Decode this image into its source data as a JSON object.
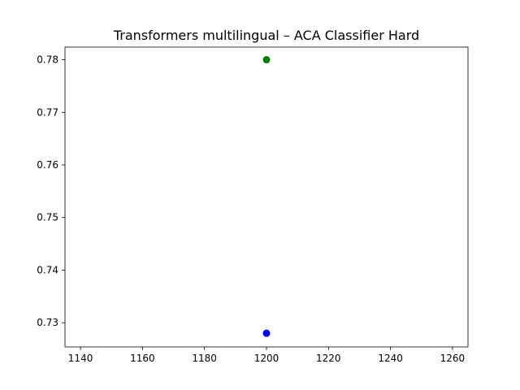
{
  "chart_data": {
    "type": "scatter",
    "title": "Transformers multilingual – ACA Classifier Hard",
    "xlabel": "",
    "ylabel": "",
    "xlim": [
      1135,
      1265
    ],
    "ylim": [
      0.7254,
      0.7824
    ],
    "grid": false,
    "x_ticks": [
      1140,
      1160,
      1180,
      1200,
      1220,
      1240,
      1260
    ],
    "y_ticks": [
      0.73,
      0.74,
      0.75,
      0.76,
      0.77,
      0.78
    ],
    "x_tick_labels": [
      "1140",
      "1160",
      "1180",
      "1200",
      "1220",
      "1240",
      "1260"
    ],
    "y_tick_labels": [
      "0.73",
      "0.74",
      "0.75",
      "0.76",
      "0.77",
      "0.78"
    ],
    "points": [
      {
        "x": 1200,
        "y": 0.78,
        "color": "#008000"
      },
      {
        "x": 1200,
        "y": 0.728,
        "color": "#0000ff"
      }
    ]
  }
}
